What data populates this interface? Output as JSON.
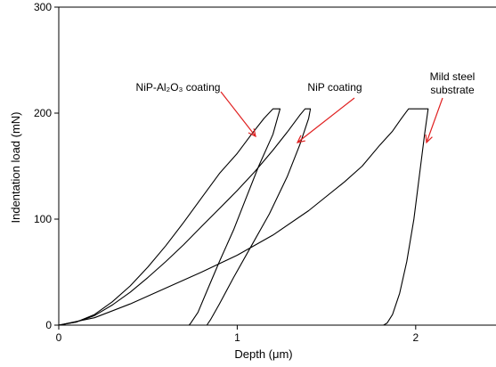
{
  "chart_data": {
    "type": "line",
    "xlabel": "Depth (μm)",
    "ylabel": "Indentation load (mN)",
    "xlim": [
      0,
      2.45
    ],
    "ylim": [
      0,
      300
    ],
    "x_ticks": [
      0,
      1,
      2
    ],
    "y_ticks": [
      0,
      100,
      200,
      300
    ],
    "grid": false,
    "colors": {
      "curves": "#000000",
      "arrows": "#e02020"
    },
    "series": [
      {
        "label_lines": [
          "NiP-Al₂O₃ coating"
        ],
        "points": [
          [
            0,
            0
          ],
          [
            0.1,
            3
          ],
          [
            0.2,
            10
          ],
          [
            0.3,
            22
          ],
          [
            0.4,
            37
          ],
          [
            0.5,
            55
          ],
          [
            0.6,
            75
          ],
          [
            0.7,
            97
          ],
          [
            0.8,
            120
          ],
          [
            0.9,
            143
          ],
          [
            1.0,
            162
          ],
          [
            1.08,
            180
          ],
          [
            1.15,
            195
          ],
          [
            1.2,
            204
          ],
          [
            1.24,
            204
          ],
          [
            1.23,
            198
          ],
          [
            1.2,
            180
          ],
          [
            1.12,
            150
          ],
          [
            1.05,
            120
          ],
          [
            0.98,
            90
          ],
          [
            0.9,
            60
          ],
          [
            0.83,
            32
          ],
          [
            0.78,
            12
          ],
          [
            0.74,
            2
          ],
          [
            0.73,
            0
          ]
        ]
      },
      {
        "label_lines": [
          "NiP coating"
        ],
        "points": [
          [
            0,
            0
          ],
          [
            0.1,
            3
          ],
          [
            0.2,
            9
          ],
          [
            0.3,
            19
          ],
          [
            0.4,
            31
          ],
          [
            0.5,
            45
          ],
          [
            0.6,
            60
          ],
          [
            0.7,
            76
          ],
          [
            0.8,
            93
          ],
          [
            0.9,
            110
          ],
          [
            1.0,
            127
          ],
          [
            1.1,
            145
          ],
          [
            1.2,
            165
          ],
          [
            1.28,
            182
          ],
          [
            1.35,
            198
          ],
          [
            1.38,
            204
          ],
          [
            1.41,
            204
          ],
          [
            1.4,
            195
          ],
          [
            1.35,
            170
          ],
          [
            1.28,
            140
          ],
          [
            1.18,
            105
          ],
          [
            1.08,
            75
          ],
          [
            0.98,
            45
          ],
          [
            0.9,
            20
          ],
          [
            0.85,
            5
          ],
          [
            0.83,
            0
          ]
        ]
      },
      {
        "label_lines": [
          "Mild steel",
          "substrate"
        ],
        "points": [
          [
            0,
            0
          ],
          [
            0.2,
            7
          ],
          [
            0.4,
            20
          ],
          [
            0.6,
            35
          ],
          [
            0.8,
            50
          ],
          [
            1.0,
            66
          ],
          [
            1.2,
            85
          ],
          [
            1.4,
            108
          ],
          [
            1.6,
            135
          ],
          [
            1.7,
            150
          ],
          [
            1.8,
            170
          ],
          [
            1.87,
            183
          ],
          [
            1.92,
            195
          ],
          [
            1.96,
            204
          ],
          [
            2.06,
            204
          ],
          [
            2.07,
            204
          ],
          [
            2.05,
            180
          ],
          [
            2.02,
            140
          ],
          [
            1.99,
            100
          ],
          [
            1.95,
            60
          ],
          [
            1.91,
            30
          ],
          [
            1.87,
            10
          ],
          [
            1.84,
            2
          ],
          [
            1.82,
            0
          ]
        ]
      }
    ]
  }
}
